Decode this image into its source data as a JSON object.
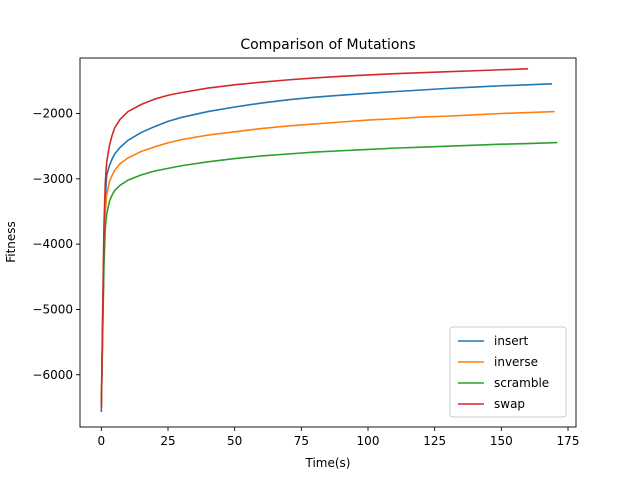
{
  "chart_data": {
    "type": "line",
    "title": "Comparison of Mutations",
    "xlabel": "Time(s)",
    "ylabel": "Fitness",
    "xlim": [
      -8,
      178
    ],
    "ylim": [
      -6800,
      -1150
    ],
    "xticks": [
      0,
      25,
      50,
      75,
      100,
      125,
      150,
      175
    ],
    "yticks": [
      -6000,
      -5000,
      -4000,
      -3000,
      -2000
    ],
    "ytick_labels": [
      "−6000",
      "−5000",
      "−4000",
      "−3000",
      "−2000"
    ],
    "grid": false,
    "legend_position": "lower-right",
    "series": [
      {
        "name": "insert",
        "color": "#1f77b4",
        "x": [
          0,
          0.5,
          1,
          1.5,
          2,
          3,
          4,
          5,
          7,
          10,
          15,
          20,
          25,
          30,
          40,
          50,
          60,
          70,
          80,
          90,
          100,
          110,
          120,
          130,
          140,
          150,
          160,
          169
        ],
        "y": [
          -6570,
          -5200,
          -4000,
          -3300,
          -2950,
          -2800,
          -2700,
          -2620,
          -2520,
          -2410,
          -2290,
          -2200,
          -2120,
          -2060,
          -1970,
          -1900,
          -1840,
          -1790,
          -1750,
          -1720,
          -1690,
          -1665,
          -1640,
          -1615,
          -1595,
          -1575,
          -1560,
          -1545
        ]
      },
      {
        "name": "inverse",
        "color": "#ff7f0e",
        "x": [
          0,
          0.5,
          1,
          1.5,
          2,
          3,
          4,
          5,
          7,
          10,
          15,
          20,
          25,
          30,
          40,
          50,
          60,
          70,
          80,
          90,
          100,
          110,
          120,
          130,
          140,
          150,
          160,
          170
        ],
        "y": [
          -6500,
          -5300,
          -4100,
          -3500,
          -3250,
          -3050,
          -2950,
          -2870,
          -2770,
          -2680,
          -2580,
          -2510,
          -2450,
          -2400,
          -2330,
          -2280,
          -2230,
          -2190,
          -2160,
          -2130,
          -2100,
          -2080,
          -2055,
          -2040,
          -2020,
          -2000,
          -1985,
          -1970
        ]
      },
      {
        "name": "scramble",
        "color": "#2ca02c",
        "x": [
          0,
          0.5,
          1,
          1.5,
          2,
          3,
          4,
          5,
          7,
          10,
          15,
          20,
          25,
          30,
          40,
          50,
          60,
          70,
          80,
          90,
          100,
          110,
          120,
          130,
          140,
          150,
          160,
          171
        ],
        "y": [
          -6450,
          -5400,
          -4300,
          -3750,
          -3550,
          -3350,
          -3250,
          -3180,
          -3100,
          -3020,
          -2940,
          -2880,
          -2840,
          -2800,
          -2740,
          -2690,
          -2650,
          -2620,
          -2590,
          -2570,
          -2550,
          -2530,
          -2515,
          -2500,
          -2485,
          -2470,
          -2460,
          -2445
        ]
      },
      {
        "name": "swap",
        "color": "#d62728",
        "x": [
          0,
          0.5,
          1,
          1.5,
          2,
          3,
          4,
          5,
          7,
          10,
          15,
          20,
          25,
          30,
          40,
          50,
          60,
          70,
          80,
          90,
          100,
          110,
          120,
          130,
          140,
          150,
          160
        ],
        "y": [
          -6500,
          -5000,
          -3700,
          -3050,
          -2750,
          -2500,
          -2340,
          -2220,
          -2090,
          -1970,
          -1860,
          -1780,
          -1720,
          -1680,
          -1610,
          -1560,
          -1520,
          -1485,
          -1455,
          -1430,
          -1410,
          -1390,
          -1375,
          -1360,
          -1345,
          -1330,
          -1315
        ]
      }
    ]
  }
}
